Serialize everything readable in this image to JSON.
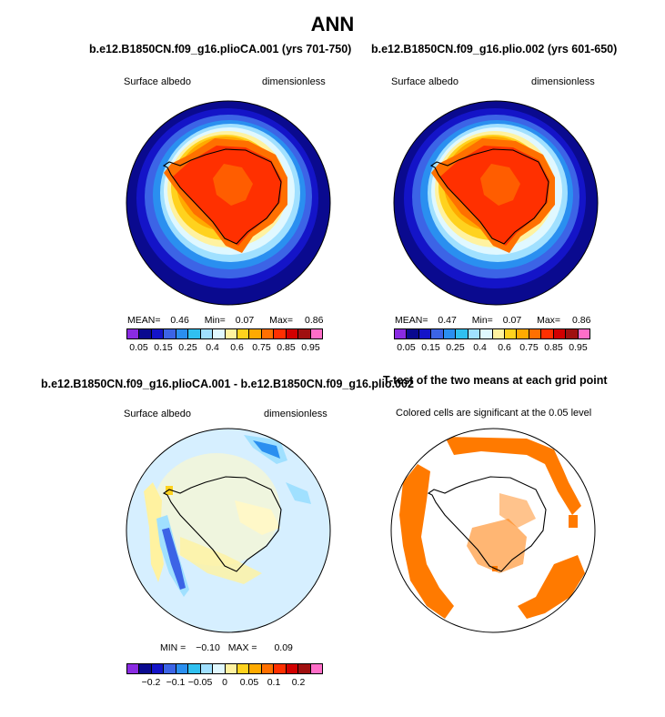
{
  "title": "ANN",
  "panels": {
    "p1": {
      "title": "b.e12.B1850CN.f09_g16.plioCA.001 (yrs 701-750)",
      "variable": "Surface albedo",
      "units": "dimensionless",
      "mean_label": "MEAN=",
      "mean": "0.46",
      "min_label": "Min=",
      "min": "0.07",
      "max_label": "Max=",
      "max": "0.86"
    },
    "p2": {
      "title": "b.e12.B1850CN.f09_g16.plio.002 (yrs 601-650)",
      "variable": "Surface albedo",
      "units": "dimensionless",
      "mean_label": "MEAN=",
      "mean": "0.47",
      "min_label": "Min=",
      "min": "0.07",
      "max_label": "Max=",
      "max": "0.86"
    },
    "p3": {
      "title": "b.e12.B1850CN.f09_g16.plioCA.001 - b.e12.B1850CN.f09_g16.plio.002",
      "variable": "Surface albedo",
      "units": "dimensionless",
      "min_label": "MIN =",
      "min": "−0.10",
      "max_label": "MAX =",
      "max": "0.09"
    },
    "p4": {
      "title": "T-test of the two means at each grid point",
      "subtitle": "Colored cells are significant at the 0.05 level"
    }
  },
  "colorbar_abs": {
    "colors": [
      "#8a2be2",
      "#0a0a8f",
      "#1414c8",
      "#3c64e6",
      "#2a8ff0",
      "#30c0f0",
      "#a0e0ff",
      "#e0f8ff",
      "#fff2a0",
      "#ffd21e",
      "#ffaa00",
      "#ff7000",
      "#ff3000",
      "#d20000",
      "#a01010",
      "#ff6ec8"
    ],
    "labels": [
      "0.05",
      "0.15",
      "0.25",
      "0.4",
      "0.6",
      "0.75",
      "0.85",
      "0.95"
    ]
  },
  "colorbar_diff": {
    "colors": [
      "#8a2be2",
      "#0a0a8f",
      "#1414c8",
      "#3c64e6",
      "#2a8ff0",
      "#30c0f0",
      "#a0e0ff",
      "#e0f8ff",
      "#fff2a0",
      "#ffd21e",
      "#ffaa00",
      "#ff7000",
      "#ff3000",
      "#d20000",
      "#a01010",
      "#ff6ec8"
    ],
    "labels": [
      "−0.2",
      "−0.1",
      "−0.05",
      "0",
      "0.05",
      "0.1",
      "0.2"
    ]
  },
  "colors": {
    "ttest_fill": "#ff7a00",
    "ocean_diff": "#d6efff"
  }
}
